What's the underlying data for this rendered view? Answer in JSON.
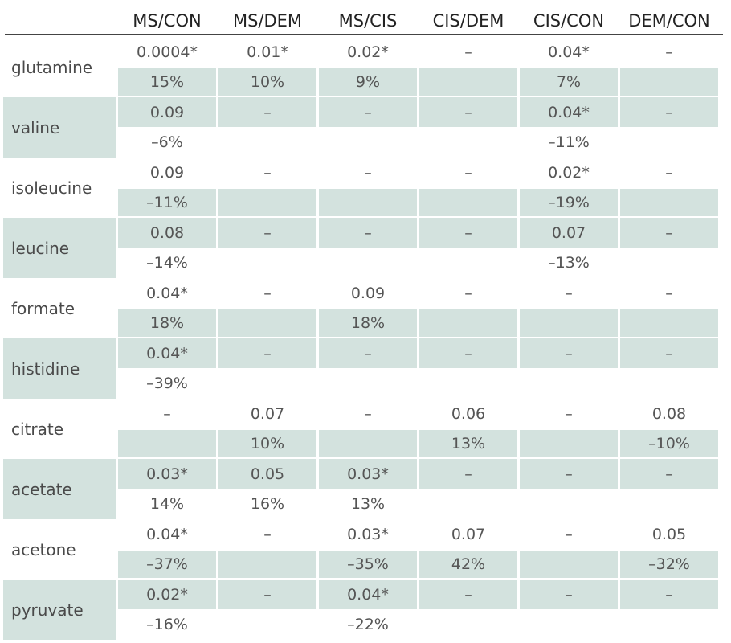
{
  "table": {
    "columns": [
      "MS/CON",
      "MS/DEM",
      "MS/CIS",
      "CIS/DEM",
      "CIS/CON",
      "DEM/CON"
    ],
    "rows": [
      {
        "name": "glutamine",
        "p": [
          "0.0004*",
          "0.01*",
          "0.02*",
          "–",
          "0.04*",
          "–"
        ],
        "pct": [
          "15%",
          "10%",
          "9%",
          "",
          "7%",
          ""
        ]
      },
      {
        "name": "valine",
        "p": [
          "0.09",
          "–",
          "–",
          "–",
          "0.04*",
          "–"
        ],
        "pct": [
          "–6%",
          "",
          "",
          "",
          "–11%",
          ""
        ]
      },
      {
        "name": "isoleucine",
        "p": [
          "0.09",
          "–",
          "–",
          "–",
          "0.02*",
          "–"
        ],
        "pct": [
          "–11%",
          "",
          "",
          "",
          "–19%",
          ""
        ]
      },
      {
        "name": "leucine",
        "p": [
          "0.08",
          "–",
          "–",
          "–",
          "0.07",
          "–"
        ],
        "pct": [
          "–14%",
          "",
          "",
          "",
          "–13%",
          ""
        ]
      },
      {
        "name": "formate",
        "p": [
          "0.04*",
          "–",
          "0.09",
          "–",
          "–",
          "–"
        ],
        "pct": [
          "18%",
          "",
          "18%",
          "",
          "",
          ""
        ]
      },
      {
        "name": "histidine",
        "p": [
          "0.04*",
          "–",
          "–",
          "–",
          "–",
          "–"
        ],
        "pct": [
          "–39%",
          "",
          "",
          "",
          "",
          ""
        ]
      },
      {
        "name": "citrate",
        "p": [
          "–",
          "0.07",
          "–",
          "0.06",
          "–",
          "0.08"
        ],
        "pct": [
          "",
          "10%",
          "",
          "13%",
          "",
          "–10%"
        ]
      },
      {
        "name": "acetate",
        "p": [
          "0.03*",
          "0.05",
          "0.03*",
          "–",
          "–",
          "–"
        ],
        "pct": [
          "14%",
          "16%",
          "13%",
          "",
          "",
          ""
        ]
      },
      {
        "name": "acetone",
        "p": [
          "0.04*",
          "–",
          "0.03*",
          "0.07",
          "–",
          "0.05"
        ],
        "pct": [
          "–37%",
          "",
          "–35%",
          "42%",
          "",
          "–32%"
        ]
      },
      {
        "name": "pyruvate",
        "p": [
          "0.02*",
          "–",
          "0.04*",
          "–",
          "–",
          "–"
        ],
        "pct": [
          "–16%",
          "",
          "–22%",
          "",
          "",
          ""
        ]
      }
    ]
  }
}
